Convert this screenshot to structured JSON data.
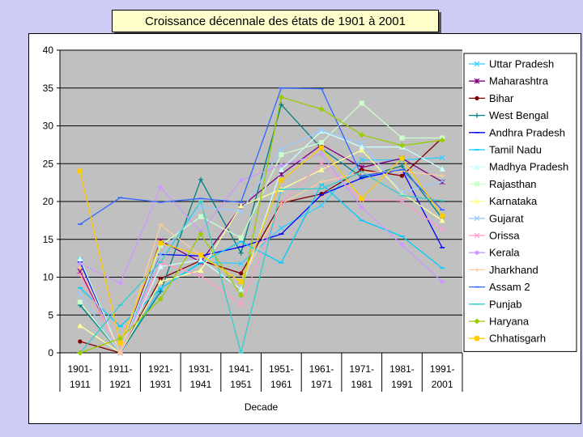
{
  "chart_data": {
    "type": "line",
    "title": "Croissance décennale des états de 1901 à 2001",
    "xlabel": "Decade",
    "ylabel": "",
    "ylim": [
      0,
      40
    ],
    "yticks": [
      0,
      5,
      10,
      15,
      20,
      25,
      30,
      35,
      40
    ],
    "grid": true,
    "legend_position": "right",
    "categories": [
      [
        "1901-",
        "1911"
      ],
      [
        "1911-",
        "1921"
      ],
      [
        "1921-",
        "1931"
      ],
      [
        "1931-",
        "1941"
      ],
      [
        "1941-",
        "1951"
      ],
      [
        "1951-",
        "1961"
      ],
      [
        "1961-",
        "1971"
      ],
      [
        "1971-",
        "1981"
      ],
      [
        "1981-",
        "1991"
      ],
      [
        "1991-",
        "2001"
      ]
    ],
    "series": [
      {
        "name": "Uttar Pradesh",
        "color": "#33ccff",
        "marker": "x",
        "values": [
          12.3,
          0,
          8.5,
          12.0,
          11.8,
          16.5,
          19.5,
          25.5,
          25.5,
          25.8
        ]
      },
      {
        "name": "Maharashtra",
        "color": "#800080",
        "marker": "star",
        "values": [
          10.8,
          0,
          14.8,
          12.0,
          19.3,
          23.6,
          27.5,
          24.5,
          25.7,
          22.6
        ]
      },
      {
        "name": "Bihar",
        "color": "#800000",
        "marker": "circle",
        "values": [
          1.5,
          0,
          9.8,
          12.2,
          10.5,
          19.8,
          21.0,
          24.2,
          23.4,
          28.4
        ]
      },
      {
        "name": "West Bengal",
        "color": "#008080",
        "marker": "plus",
        "values": [
          6.3,
          0,
          8.1,
          22.9,
          13.2,
          32.8,
          27.0,
          23.2,
          24.7,
          17.8
        ]
      },
      {
        "name": "Andhra Pradesh",
        "color": "#0000ff",
        "marker": "dash",
        "values": [
          12.0,
          0,
          13.0,
          12.8,
          14.0,
          15.7,
          20.9,
          23.1,
          24.2,
          13.9
        ]
      },
      {
        "name": "Tamil Nadu",
        "color": "#00ccff",
        "marker": "dash",
        "values": [
          8.6,
          3.5,
          8.5,
          11.9,
          14.7,
          11.9,
          22.3,
          17.5,
          15.4,
          11.2
        ]
      },
      {
        "name": "Madhya Pradesh",
        "color": "#ccffff",
        "marker": "triangle",
        "values": [
          12.4,
          0,
          11.4,
          12.3,
          8.4,
          24.2,
          29.3,
          27.2,
          27.2,
          24.3
        ]
      },
      {
        "name": "Rajasthan",
        "color": "#ccffcc",
        "marker": "square",
        "values": [
          6.7,
          0,
          14.2,
          18.0,
          15.2,
          26.2,
          27.8,
          33.0,
          28.4,
          28.4
        ]
      },
      {
        "name": "Karnataka",
        "color": "#ffff99",
        "marker": "triangle",
        "values": [
          3.6,
          0,
          9.4,
          10.9,
          19.4,
          21.6,
          24.2,
          26.8,
          21.1,
          17.5
        ]
      },
      {
        "name": "Gujarat",
        "color": "#99ccff",
        "marker": "x",
        "values": [
          7.8,
          0,
          12.9,
          19.3,
          18.7,
          26.9,
          29.4,
          27.7,
          21.2,
          22.7
        ]
      },
      {
        "name": "Orissa",
        "color": "#ff99cc",
        "marker": "x",
        "values": [
          10.4,
          0,
          11.9,
          10.2,
          6.4,
          19.8,
          25.1,
          20.2,
          20.1,
          16.3
        ]
      },
      {
        "name": "Kerala",
        "color": "#cc99ff",
        "marker": "circle",
        "values": [
          11.8,
          9.2,
          21.9,
          16.0,
          22.8,
          24.8,
          26.3,
          19.2,
          14.3,
          9.4
        ]
      },
      {
        "name": "Jharkhand",
        "color": "#ffcc99",
        "marker": "plus",
        "values": [
          11.2,
          0,
          16.9,
          12.9,
          9.4,
          19.7,
          22.6,
          23.8,
          24.0,
          23.4
        ]
      },
      {
        "name": "Assam 2",
        "color": "#3366ff",
        "marker": "dash",
        "values": [
          17.0,
          20.5,
          19.9,
          20.4,
          19.9,
          35.0,
          34.9,
          23.4,
          24.2,
          18.9
        ]
      },
      {
        "name": "Punjab",
        "color": "#33cccc",
        "marker": "dash",
        "values": [
          0,
          6.3,
          12.0,
          20.0,
          0,
          21.6,
          21.7,
          23.9,
          20.8,
          20.1
        ]
      },
      {
        "name": "Haryana",
        "color": "#99cc00",
        "marker": "diamond",
        "values": [
          0,
          1.9,
          7.1,
          15.7,
          7.6,
          33.8,
          32.2,
          28.8,
          27.4,
          28.1
        ]
      },
      {
        "name": "Chhatisgarh",
        "color": "#ffcc00",
        "marker": "square",
        "values": [
          24.0,
          1.3,
          14.5,
          12.9,
          9.4,
          22.8,
          27.1,
          20.4,
          25.7,
          18.1
        ]
      }
    ]
  }
}
